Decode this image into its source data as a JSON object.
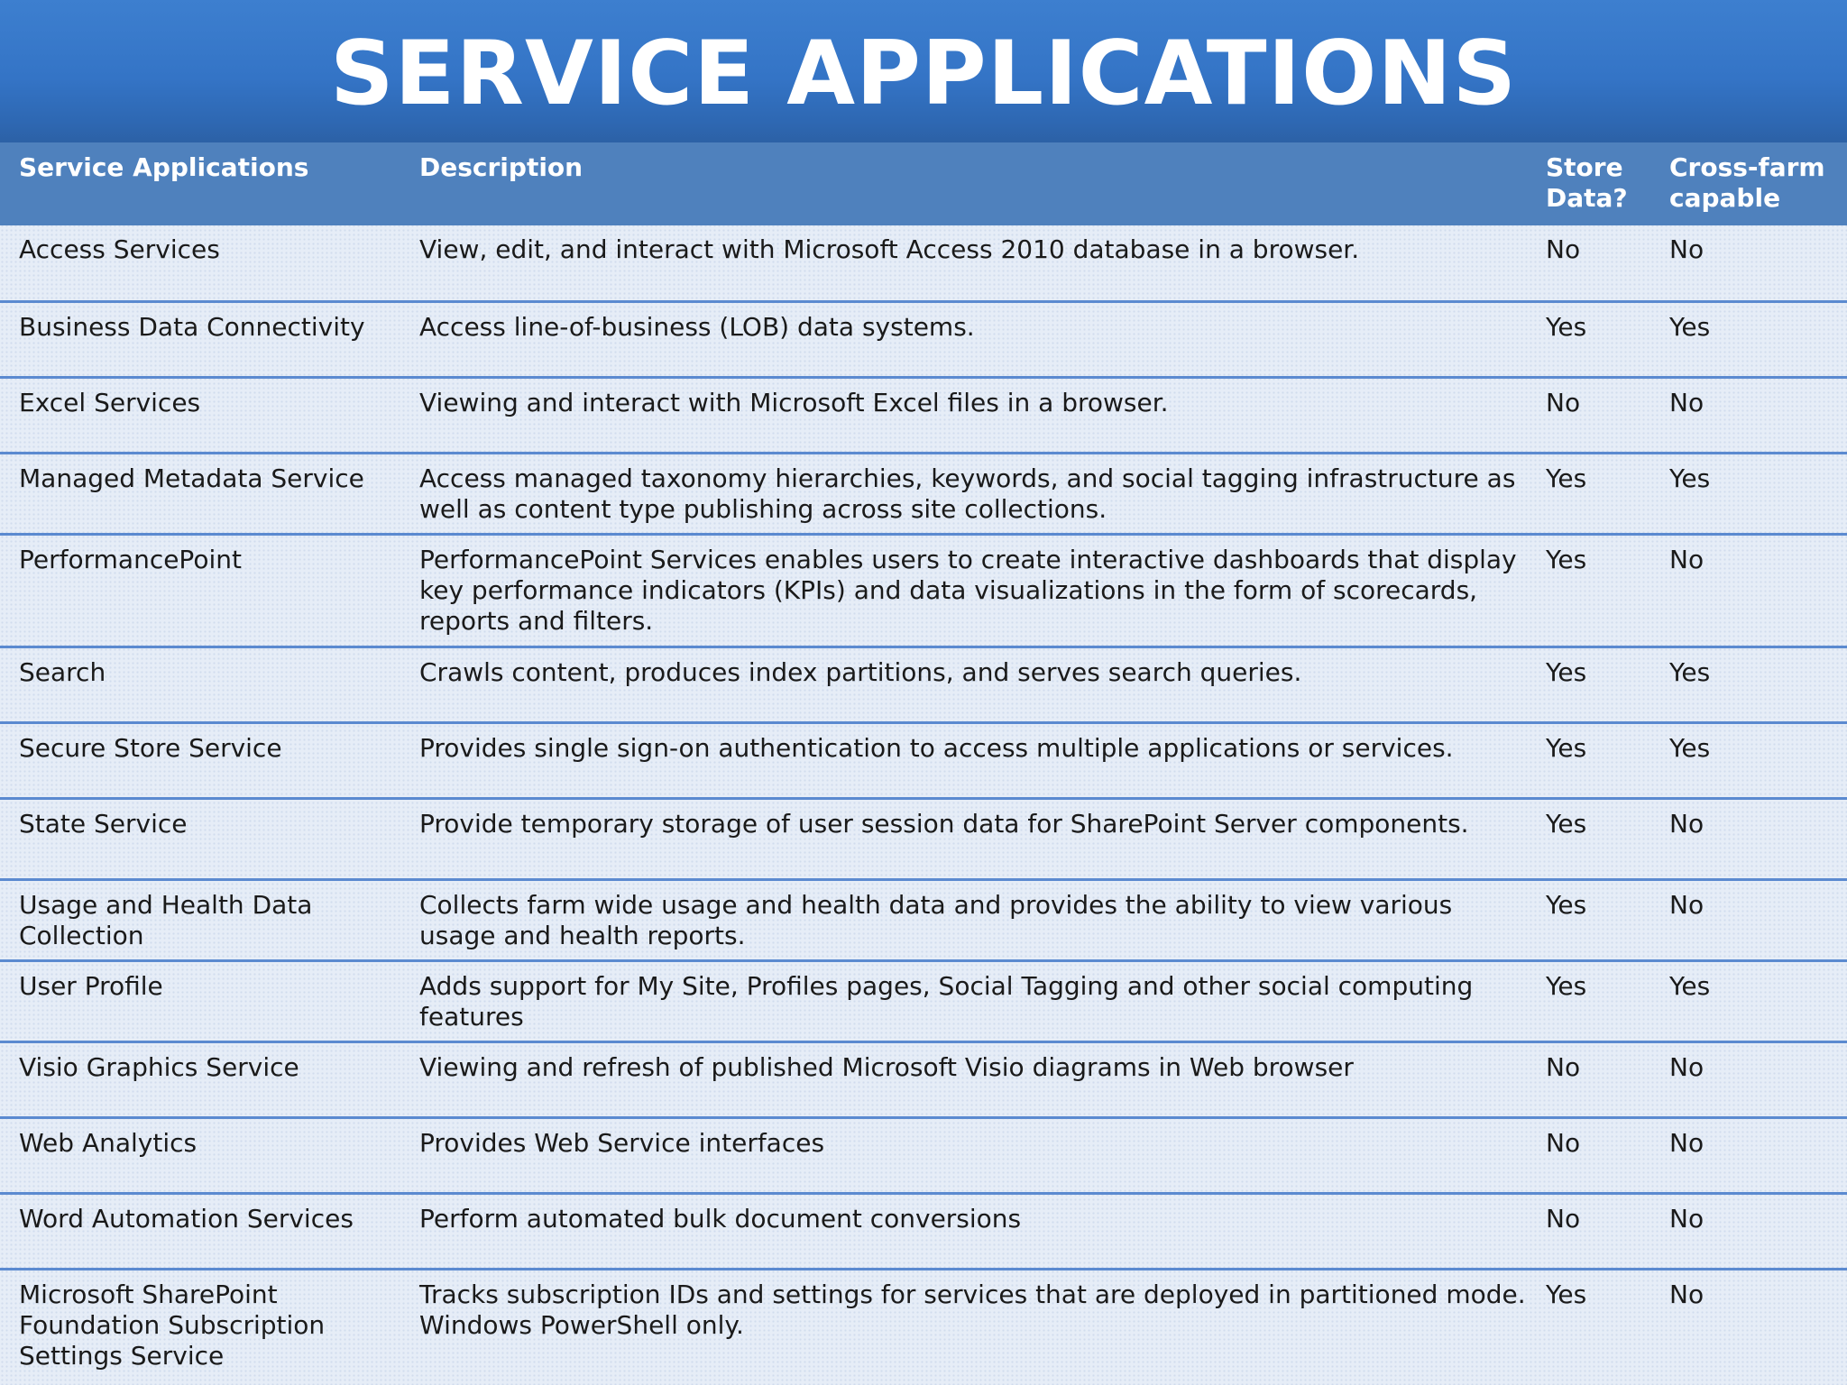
{
  "title": "SERVICE APPLICATIONS",
  "table": {
    "headers": {
      "name": "Service Applications",
      "description": "Description",
      "store_data": "Store Data?",
      "cross_farm": "Cross-farm capable"
    },
    "rows": [
      {
        "name": "Access Services",
        "description": "View, edit, and interact with Microsoft Access 2010 database in a browser.",
        "store": "No",
        "cross": "No"
      },
      {
        "name": "Business Data Connectivity",
        "description": "Access line-of-business (LOB) data systems.",
        "store": "Yes",
        "cross": "Yes"
      },
      {
        "name": "Excel Services",
        "description": "Viewing and interact with Microsoft Excel files in a browser.",
        "store": "No",
        "cross": "No"
      },
      {
        "name": "Managed Metadata Service",
        "description": "Access managed taxonomy hierarchies, keywords, and social tagging infrastructure as well as content type publishing across site collections.",
        "store": "Yes",
        "cross": "Yes"
      },
      {
        "name": "PerformancePoint",
        "description": "PerformancePoint Services enables users to create interactive dashboards that display key performance indicators (KPIs) and data visualizations in the form of scorecards, reports and filters.",
        "store": "Yes",
        "cross": "No"
      },
      {
        "name": "Search",
        "description": "Crawls content, produces index partitions, and serves search queries.",
        "store": "Yes",
        "cross": "Yes"
      },
      {
        "name": "Secure Store Service",
        "description": "Provides single sign-on authentication to access multiple applications or services.",
        "store": "Yes",
        "cross": "Yes"
      },
      {
        "name": "State Service",
        "description": "Provide temporary storage of user session data for SharePoint Server components.",
        "store": "Yes",
        "cross": "No"
      },
      {
        "name": "Usage and Health Data Collection",
        "description": "Collects farm wide usage and health data and provides the ability to view various usage and health reports.",
        "store": "Yes",
        "cross": "No"
      },
      {
        "name": "User Profile",
        "description": "Adds support for My Site, Profiles pages, Social Tagging and other social computing features",
        "store": "Yes",
        "cross": "Yes"
      },
      {
        "name": "Visio Graphics Service",
        "description": "Viewing and refresh of published Microsoft Visio diagrams in Web browser",
        "store": "No",
        "cross": "No"
      },
      {
        "name": "Web Analytics",
        "description": "Provides Web Service interfaces",
        "store": "No",
        "cross": "No"
      },
      {
        "name": "Word Automation Services",
        "description": "Perform automated bulk document conversions",
        "store": "No",
        "cross": "No"
      },
      {
        "name": "Microsoft SharePoint Foundation Subscription Settings Service",
        "description": "Tracks subscription IDs and settings for services that are deployed in partitioned mode. Windows PowerShell only.",
        "store": "Yes",
        "cross": "No"
      }
    ]
  }
}
